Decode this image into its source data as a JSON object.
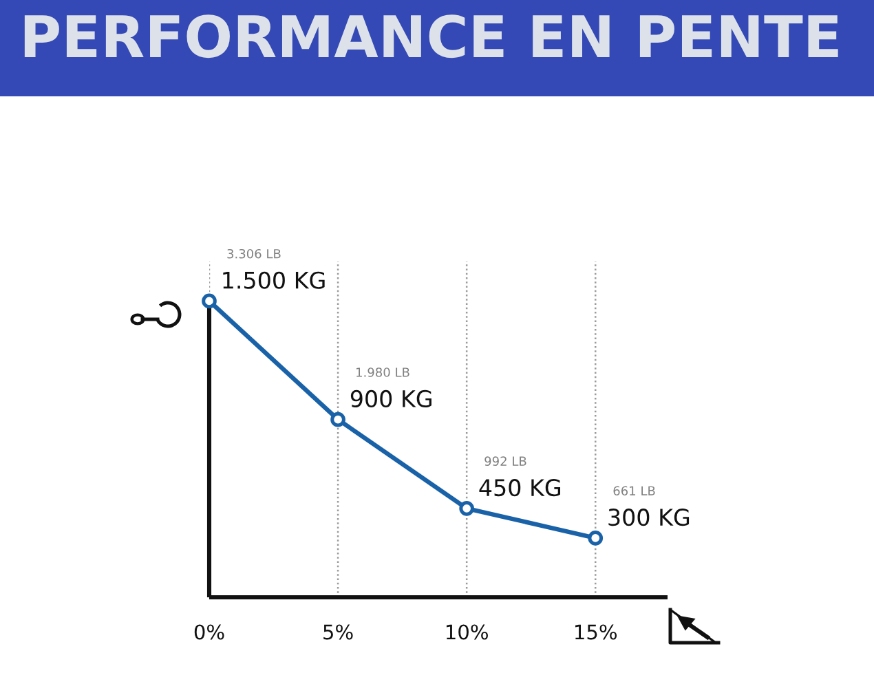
{
  "chart_data": {
    "type": "line",
    "title": "PERFORMANCE EN PENTE",
    "x": [
      0,
      5,
      10,
      15
    ],
    "xlim": [
      0,
      17.8
    ],
    "xticks": [
      {
        "value": 0,
        "label": "0%"
      },
      {
        "value": 5,
        "label": "5%"
      },
      {
        "value": 10,
        "label": "10%"
      },
      {
        "value": 15,
        "label": "15%"
      }
    ],
    "ylim": [
      0,
      1700
    ],
    "tick_labels": "x",
    "grid": "x",
    "marker": "circle",
    "line_style": "solid",
    "series": [
      {
        "color": "#1a62a8",
        "values": [
          1500,
          900,
          450,
          300
        ],
        "value_labels": [
          "1.500 KG",
          "900 KG",
          "450 KG",
          "300 KG"
        ]
      }
    ],
    "annotations": [
      "3.306 LB",
      "1.980 LB",
      "992 LB",
      "661 LB"
    ]
  }
}
